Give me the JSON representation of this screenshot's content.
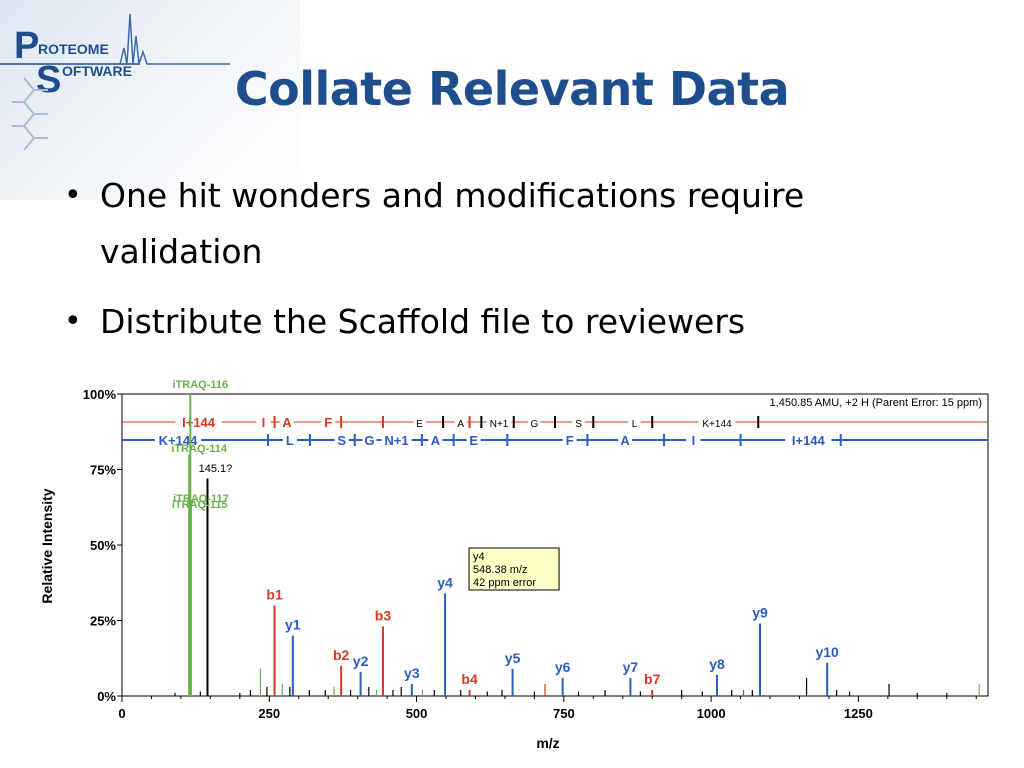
{
  "logo": {
    "line1": "ROTEOME",
    "line2": "OFTWARE",
    "big1": "P",
    "big2": "S"
  },
  "slide": {
    "title": "Collate Relevant Data",
    "bullets": [
      {
        "line1": "One hit wonders and modifications require",
        "line2": "validation"
      },
      {
        "line1": "Distribute the Scaffold file to reviewers"
      }
    ]
  },
  "chart_data": {
    "type": "bar",
    "xlabel": "m/z",
    "ylabel": "Relative Intensity",
    "xlim": [
      0,
      1470
    ],
    "ylim": [
      0,
      100
    ],
    "xticks": [
      0,
      250,
      500,
      750,
      1000,
      1250
    ],
    "yticks": [
      {
        "value": 0,
        "label": "0%"
      },
      {
        "value": 25,
        "label": "25%"
      },
      {
        "value": 50,
        "label": "50%"
      },
      {
        "value": 75,
        "label": "75%"
      },
      {
        "value": 100,
        "label": "100%"
      }
    ],
    "parent_info": "1,450.85 AMU, +2 H (Parent Error: 15 ppm)",
    "colors": {
      "b": "#d63a1f",
      "y": "#2a5cc4",
      "other": "#6ab04c",
      "black": "#000000",
      "bseq": "#d63a1f",
      "yseq": "#2a5cc4"
    },
    "tooltip": {
      "lines": [
        "y4",
        "548.38 m/z",
        "42 ppm error"
      ]
    },
    "labeled_peaks": [
      {
        "label": "iTRAQ-116",
        "mz": 116,
        "intensity": 100,
        "kind": "other"
      },
      {
        "label": "iTRAQ-114",
        "mz": 114,
        "intensity": 80,
        "kind": "other"
      },
      {
        "label": "iTRAQ-117",
        "mz": 117,
        "intensity": 65,
        "kind": "other"
      },
      {
        "label": "iTRAQ-115",
        "mz": 115,
        "intensity": 63,
        "kind": "other"
      },
      {
        "label": "145.1?",
        "mz": 145.1,
        "intensity": 72,
        "kind": "black"
      },
      {
        "label": "b1",
        "mz": 259,
        "intensity": 30,
        "kind": "b"
      },
      {
        "label": "y1",
        "mz": 290,
        "intensity": 20,
        "kind": "y"
      },
      {
        "label": "b2",
        "mz": 372,
        "intensity": 10,
        "kind": "b"
      },
      {
        "label": "y2",
        "mz": 405,
        "intensity": 8,
        "kind": "y"
      },
      {
        "label": "b3",
        "mz": 443,
        "intensity": 23,
        "kind": "b"
      },
      {
        "label": "y3",
        "mz": 492,
        "intensity": 4,
        "kind": "y"
      },
      {
        "label": "y4",
        "mz": 548.38,
        "intensity": 34,
        "kind": "y"
      },
      {
        "label": "b4",
        "mz": 590,
        "intensity": 2,
        "kind": "b"
      },
      {
        "label": "y5",
        "mz": 663,
        "intensity": 9,
        "kind": "y"
      },
      {
        "label": "y6",
        "mz": 748,
        "intensity": 6,
        "kind": "y"
      },
      {
        "label": "y7",
        "mz": 863,
        "intensity": 6,
        "kind": "y"
      },
      {
        "label": "b7",
        "mz": 900,
        "intensity": 2,
        "kind": "b"
      },
      {
        "label": "y8",
        "mz": 1010,
        "intensity": 7,
        "kind": "y"
      },
      {
        "label": "y9",
        "mz": 1083,
        "intensity": 24,
        "kind": "y"
      },
      {
        "label": "y10",
        "mz": 1197,
        "intensity": 11,
        "kind": "y"
      }
    ],
    "minor_peaks": [
      {
        "mz": 90,
        "intensity": 1,
        "kind": "black"
      },
      {
        "mz": 133,
        "intensity": 1.5,
        "kind": "black"
      },
      {
        "mz": 200,
        "intensity": 1,
        "kind": "black"
      },
      {
        "mz": 218,
        "intensity": 2,
        "kind": "black"
      },
      {
        "mz": 235,
        "intensity": 9,
        "kind": "other"
      },
      {
        "mz": 246,
        "intensity": 3,
        "kind": "black"
      },
      {
        "mz": 272,
        "intensity": 4,
        "kind": "other"
      },
      {
        "mz": 285,
        "intensity": 3,
        "kind": "black"
      },
      {
        "mz": 318,
        "intensity": 2,
        "kind": "black"
      },
      {
        "mz": 345,
        "intensity": 2,
        "kind": "black"
      },
      {
        "mz": 360,
        "intensity": 3,
        "kind": "other"
      },
      {
        "mz": 388,
        "intensity": 2,
        "kind": "black"
      },
      {
        "mz": 419,
        "intensity": 3,
        "kind": "black"
      },
      {
        "mz": 432,
        "intensity": 2,
        "kind": "other"
      },
      {
        "mz": 460,
        "intensity": 2,
        "kind": "black"
      },
      {
        "mz": 474,
        "intensity": 3,
        "kind": "black"
      },
      {
        "mz": 510,
        "intensity": 2,
        "kind": "other"
      },
      {
        "mz": 530,
        "intensity": 2,
        "kind": "black"
      },
      {
        "mz": 575,
        "intensity": 2,
        "kind": "black"
      },
      {
        "mz": 620,
        "intensity": 1.5,
        "kind": "black"
      },
      {
        "mz": 645,
        "intensity": 2,
        "kind": "black"
      },
      {
        "mz": 700,
        "intensity": 1.5,
        "kind": "black"
      },
      {
        "mz": 718,
        "intensity": 4,
        "kind": "b"
      },
      {
        "mz": 775,
        "intensity": 1.5,
        "kind": "black"
      },
      {
        "mz": 820,
        "intensity": 2,
        "kind": "black"
      },
      {
        "mz": 880,
        "intensity": 1.5,
        "kind": "black"
      },
      {
        "mz": 950,
        "intensity": 2,
        "kind": "black"
      },
      {
        "mz": 985,
        "intensity": 1.5,
        "kind": "black"
      },
      {
        "mz": 1035,
        "intensity": 2,
        "kind": "black"
      },
      {
        "mz": 1055,
        "intensity": 2,
        "kind": "b"
      },
      {
        "mz": 1070,
        "intensity": 2,
        "kind": "black"
      },
      {
        "mz": 1162,
        "intensity": 6,
        "kind": "black"
      },
      {
        "mz": 1213,
        "intensity": 2,
        "kind": "black"
      },
      {
        "mz": 1235,
        "intensity": 1.5,
        "kind": "black"
      },
      {
        "mz": 1302,
        "intensity": 4,
        "kind": "black"
      },
      {
        "mz": 1350,
        "intensity": 1,
        "kind": "black"
      },
      {
        "mz": 1400,
        "intensity": 1,
        "kind": "black"
      },
      {
        "mz": 1455,
        "intensity": 4,
        "kind": "other"
      }
    ],
    "b_sequence": [
      {
        "label": "I+144",
        "major": true
      },
      {
        "label": "I",
        "major": true
      },
      {
        "label": "A",
        "major": true
      },
      {
        "label": "F",
        "major": true
      },
      {
        "label": "E",
        "major": false
      },
      {
        "label": "A",
        "major": false
      },
      {
        "label": "N+1",
        "major": false
      },
      {
        "label": "G",
        "major": false
      },
      {
        "label": "S",
        "major": false
      },
      {
        "label": "L",
        "major": false
      },
      {
        "label": "K+144",
        "major": false
      }
    ],
    "y_sequence": [
      "K+144",
      "L",
      "S",
      "G",
      "N+1",
      "A",
      "E",
      "F",
      "A",
      "I",
      "I+144"
    ]
  }
}
